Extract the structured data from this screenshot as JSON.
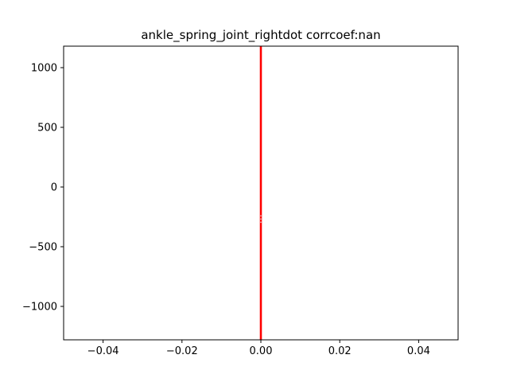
{
  "chart_data": {
    "type": "line",
    "title": "ankle_spring_joint_rightdot corrcoef:nan",
    "xlabel": "",
    "ylabel": "",
    "xlim": [
      -0.05,
      0.05
    ],
    "ylim": [
      -1280,
      1180
    ],
    "grid": false,
    "legend": "none",
    "x_ticks": [
      -0.04,
      -0.02,
      0.0,
      0.02,
      0.04
    ],
    "x_tick_labels": [
      "−0.04",
      "−0.02",
      "0.00",
      "0.02",
      "0.04"
    ],
    "y_ticks": [
      1000,
      500,
      0,
      -500,
      -1000
    ],
    "y_tick_labels": [
      "1000",
      "500",
      "0",
      "−500",
      "−1000"
    ],
    "series": [
      {
        "color": "#ff0000",
        "x": [
          0,
          0
        ],
        "y": [
          -1280,
          1180
        ]
      },
      {
        "color": "#e6e6e6",
        "x": [
          0,
          0
        ],
        "y": [
          -300,
          -220
        ],
        "style": "dotted"
      }
    ]
  }
}
